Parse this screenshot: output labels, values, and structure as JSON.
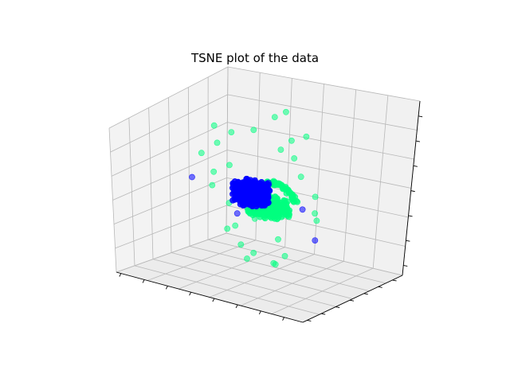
{
  "chart_data": {
    "type": "scatter",
    "projection": "3d",
    "title": "TSNE plot of the data",
    "xlabel": "",
    "ylabel": "",
    "zlabel": "",
    "grid": true,
    "tick_labels_shown": false,
    "xlim": [
      -60,
      60
    ],
    "ylim": [
      -60,
      60
    ],
    "zlim": [
      -60,
      60
    ],
    "series": [
      {
        "color": "#0000ff",
        "dense_cluster": {
          "center": [
            -8,
            0,
            0
          ],
          "radius": 9,
          "count": 380
        },
        "points": [
          [
            -55,
            15,
            -5
          ],
          [
            45,
            -20,
            -15
          ],
          [
            5,
            35,
            -20
          ],
          [
            -5,
            10,
            -12
          ],
          [
            0,
            5,
            8
          ],
          [
            -12,
            -8,
            -14
          ]
        ]
      },
      {
        "color": "#00ff7f",
        "dense_cluster": {
          "center": [
            10,
            -12,
            -2
          ],
          "radius": 10,
          "count": 300,
          "arc_count": 90
        },
        "points": [
          [
            -50,
            30,
            30
          ],
          [
            -55,
            25,
            10
          ],
          [
            -45,
            20,
            -10
          ],
          [
            -40,
            30,
            -25
          ],
          [
            -35,
            20,
            -40
          ],
          [
            -20,
            10,
            -45
          ],
          [
            -10,
            0,
            -50
          ],
          [
            0,
            -10,
            -40
          ],
          [
            10,
            0,
            -30
          ],
          [
            20,
            -20,
            -40
          ],
          [
            30,
            -40,
            -30
          ],
          [
            40,
            -45,
            -20
          ],
          [
            50,
            -30,
            10
          ],
          [
            35,
            -20,
            30
          ],
          [
            25,
            -25,
            50
          ],
          [
            0,
            10,
            55
          ],
          [
            -10,
            5,
            45
          ],
          [
            5,
            20,
            35
          ],
          [
            -30,
            15,
            35
          ],
          [
            -45,
            25,
            20
          ],
          [
            -25,
            5,
            15
          ],
          [
            15,
            -15,
            20
          ],
          [
            20,
            10,
            45
          ],
          [
            -5,
            30,
            50
          ],
          [
            10,
            15,
            25
          ],
          [
            -15,
            -5,
            -25
          ],
          [
            30,
            5,
            5
          ],
          [
            -20,
            25,
            -30
          ],
          [
            40,
            -10,
            -5
          ],
          [
            -38,
            10,
            5
          ]
        ]
      }
    ]
  }
}
